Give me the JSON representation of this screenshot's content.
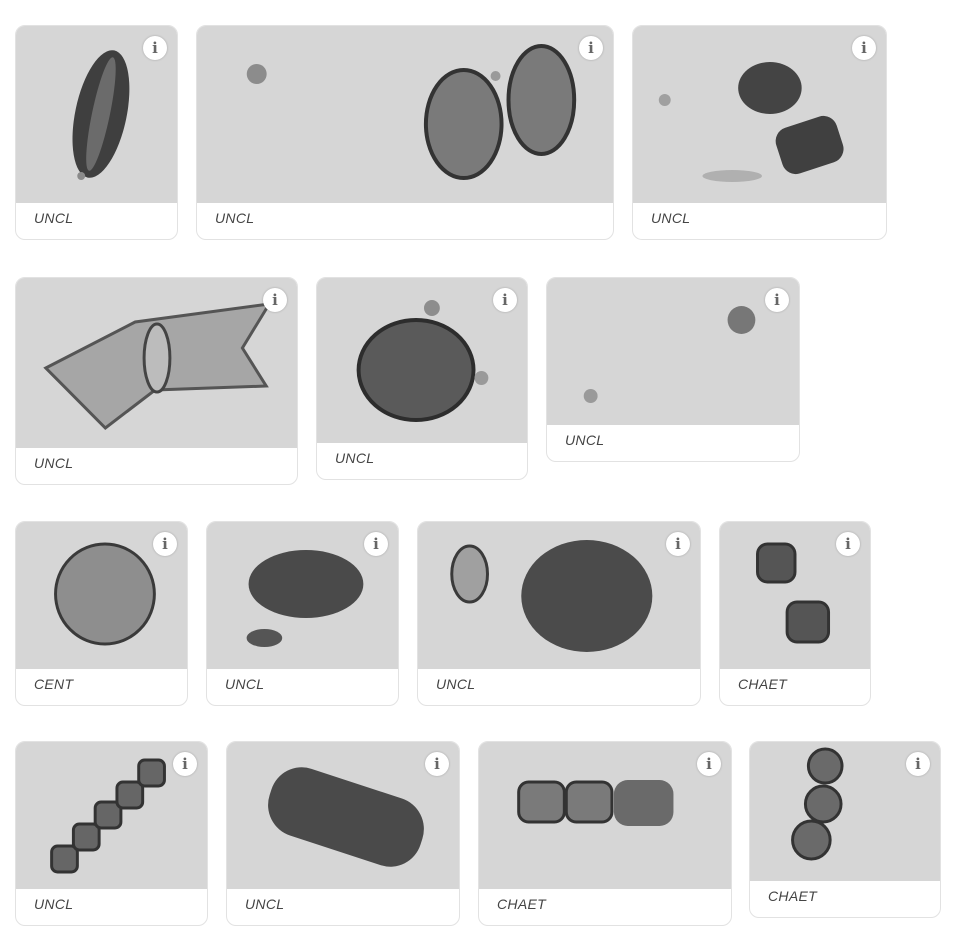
{
  "info_icon_glyph": "i",
  "colors": {
    "image_background": "#d6d6d6",
    "cell_dark": "#3a3a3a",
    "caption_text": "#444444"
  },
  "cards": [
    {
      "label": "UNCL"
    },
    {
      "label": "UNCL"
    },
    {
      "label": "UNCL"
    },
    {
      "label": "UNCL"
    },
    {
      "label": "UNCL"
    },
    {
      "label": "UNCL"
    },
    {
      "label": "CENT"
    },
    {
      "label": "UNCL"
    },
    {
      "label": "UNCL"
    },
    {
      "label": "CHAET"
    },
    {
      "label": "UNCL"
    },
    {
      "label": "UNCL"
    },
    {
      "label": "CHAET"
    },
    {
      "label": "CHAET"
    }
  ]
}
